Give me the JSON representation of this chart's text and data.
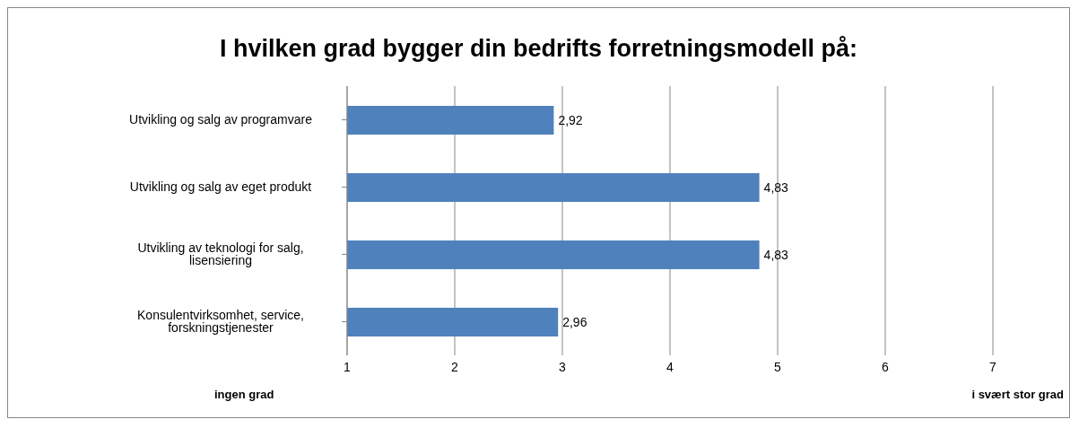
{
  "chart_data": {
    "type": "bar",
    "orientation": "horizontal",
    "title": "I hvilken grad bygger din bedrifts forretningsmodell på:",
    "categories": [
      "Utvikling og salg av programvare",
      "Utvikling og salg av eget produkt",
      "Utvikling av teknologi for salg,  lisensiering",
      "Konsulentvirksomhet, service, forskningstjenester"
    ],
    "values": [
      2.92,
      4.83,
      4.83,
      2.96
    ],
    "value_labels": [
      "2,92",
      "4,83",
      "4,83",
      "2,96"
    ],
    "color": "#4f81bd",
    "xlim": [
      1,
      7
    ],
    "xticks": [
      1,
      2,
      3,
      4,
      5,
      6,
      7
    ],
    "grid": "x",
    "annotations": [
      "ingen grad",
      "i svært stor grad"
    ]
  }
}
